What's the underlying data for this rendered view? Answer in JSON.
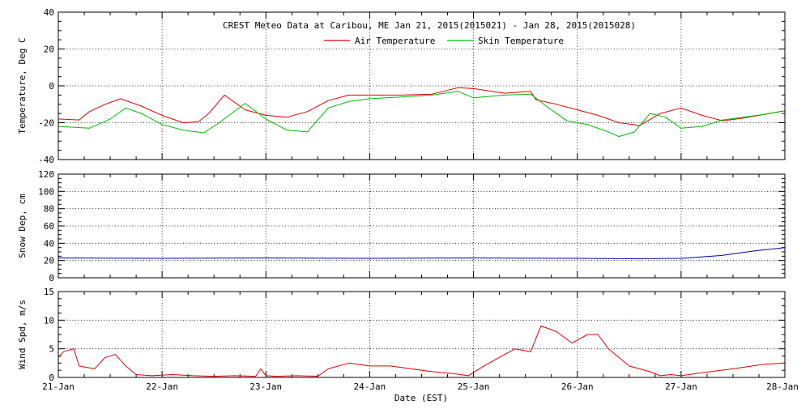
{
  "chart_data": [
    {
      "type": "line",
      "title": "CREST Meteo Data at Caribou, ME   Jan 21, 2015(2015021) - Jan 28, 2015(2015028)",
      "xlabel": "",
      "ylabel": "Temperature, Deg C",
      "ylim": [
        -40,
        40
      ],
      "yticks": [
        -40,
        -20,
        0,
        20,
        40
      ],
      "xlim": [
        0,
        7
      ],
      "grid": true,
      "legend": "top-center",
      "series": [
        {
          "name": "Air Temperature",
          "color": "#e00000",
          "x": [
            0,
            0.2,
            0.3,
            0.45,
            0.6,
            0.8,
            1.0,
            1.2,
            1.35,
            1.45,
            1.6,
            1.8,
            2.0,
            2.2,
            2.4,
            2.6,
            2.8,
            3.0,
            3.3,
            3.6,
            3.85,
            4.0,
            4.3,
            4.55,
            4.6,
            4.8,
            5.0,
            5.2,
            5.3,
            5.4,
            5.6,
            5.8,
            6.0,
            6.2,
            6.4,
            6.6,
            6.8,
            7.0
          ],
          "values": [
            -18,
            -18.5,
            -14,
            -10,
            -7,
            -11,
            -16,
            -20,
            -19.5,
            -15,
            -5,
            -13,
            -16,
            -17,
            -14,
            -8,
            -5,
            -5,
            -5,
            -4.5,
            -1,
            -1.5,
            -4,
            -3,
            -7.5,
            -10,
            -13,
            -16,
            -18,
            -20,
            -21.5,
            -15,
            -12,
            -16,
            -19,
            -17.5,
            -15.5,
            -13.5
          ]
        },
        {
          "name": "Skin Temperature",
          "color": "#00bb00",
          "x": [
            0,
            0.3,
            0.5,
            0.65,
            0.8,
            1.0,
            1.2,
            1.4,
            1.55,
            1.8,
            2.0,
            2.2,
            2.4,
            2.6,
            2.8,
            3.0,
            3.3,
            3.6,
            3.85,
            4.0,
            4.3,
            4.55,
            4.7,
            4.9,
            5.1,
            5.3,
            5.4,
            5.55,
            5.7,
            5.85,
            6.0,
            6.2,
            6.4,
            6.6,
            6.8,
            7.0
          ],
          "values": [
            -22,
            -23,
            -18,
            -12,
            -15,
            -21,
            -24,
            -25.5,
            -20,
            -9.5,
            -18,
            -24,
            -25,
            -12,
            -8.5,
            -7,
            -6,
            -5,
            -3,
            -6.5,
            -5,
            -4.5,
            -11,
            -19,
            -21,
            -25,
            -27.5,
            -25,
            -15,
            -17,
            -23,
            -22,
            -18.5,
            -17,
            -15.5,
            -13.5
          ]
        }
      ]
    },
    {
      "type": "line",
      "ylabel": "Snow Dep, cm",
      "ylim": [
        0,
        120
      ],
      "yticks": [
        0,
        20,
        40,
        60,
        80,
        100,
        120
      ],
      "xlim": [
        0,
        7
      ],
      "grid": true,
      "series": [
        {
          "color": "#0000aa",
          "x": [
            0,
            1,
            2,
            3,
            4,
            5,
            5.5,
            6,
            6.4,
            6.7,
            7.0
          ],
          "values": [
            23,
            22.5,
            23,
            22.5,
            23,
            22.5,
            22,
            22.5,
            26,
            31,
            35
          ]
        }
      ]
    },
    {
      "type": "line",
      "ylabel": "Wind Spd, m/s",
      "xlabel": "Date (EST)",
      "ylim": [
        0,
        15
      ],
      "yticks": [
        0,
        5,
        10,
        15
      ],
      "xlim": [
        0,
        7
      ],
      "xticks": [
        "21-Jan",
        "22-Jan",
        "23-Jan",
        "24-Jan",
        "25-Jan",
        "26-Jan",
        "27-Jan",
        "28-Jan"
      ],
      "grid": true,
      "series": [
        {
          "color": "#e00000",
          "x": [
            0,
            0.05,
            0.15,
            0.2,
            0.35,
            0.45,
            0.55,
            0.65,
            0.75,
            0.9,
            1.1,
            1.3,
            1.5,
            1.7,
            1.9,
            1.95,
            2.0,
            2.1,
            2.3,
            2.5,
            2.6,
            2.8,
            3.0,
            3.2,
            3.4,
            3.6,
            3.8,
            3.95,
            4.1,
            4.3,
            4.4,
            4.55,
            4.65,
            4.8,
            4.95,
            5.1,
            5.2,
            5.3,
            5.5,
            5.7,
            5.8,
            5.9,
            6.0,
            6.2,
            6.5,
            6.8,
            7.0
          ],
          "values": [
            3.5,
            4.5,
            5,
            2,
            1.5,
            3.5,
            4,
            2,
            0.5,
            0.3,
            0.5,
            0.3,
            0.2,
            0.3,
            0.2,
            1.5,
            0.3,
            0.2,
            0.3,
            0.2,
            1.5,
            2.5,
            2,
            2,
            1.5,
            1,
            0.7,
            0.3,
            2,
            4,
            5,
            4.5,
            9,
            8,
            6,
            7.5,
            7.5,
            5,
            2,
            1,
            0.3,
            0.5,
            0.3,
            0.8,
            1.5,
            2.3,
            2.5
          ]
        }
      ]
    }
  ]
}
